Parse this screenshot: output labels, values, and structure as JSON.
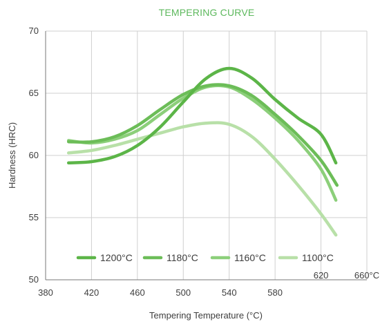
{
  "chart_data": {
    "type": "line",
    "title": "TEMPERING CURVE",
    "xlabel": "Tempering Temperature (°C)",
    "ylabel": "Hardness (HRC)",
    "xlim": [
      380,
      660
    ],
    "ylim": [
      50,
      70
    ],
    "x_ticks": [
      "380",
      "420",
      "460",
      "500",
      "540",
      "580",
      "620",
      "660°C"
    ],
    "y_ticks": [
      "50",
      "55",
      "60",
      "65",
      "70"
    ],
    "grid": true,
    "legend_position": "bottom",
    "series": [
      {
        "name": "1200°C",
        "color": "#5cb548",
        "points": [
          [
            400,
            59.4
          ],
          [
            420,
            59.5
          ],
          [
            440,
            59.9
          ],
          [
            460,
            60.8
          ],
          [
            480,
            62.3
          ],
          [
            500,
            64.3
          ],
          [
            520,
            66.2
          ],
          [
            540,
            67.0
          ],
          [
            560,
            66.2
          ],
          [
            580,
            64.5
          ],
          [
            600,
            63.0
          ],
          [
            620,
            61.7
          ],
          [
            633,
            59.4
          ]
        ]
      },
      {
        "name": "1180°C",
        "color": "#6cbd58",
        "points": [
          [
            400,
            61.1
          ],
          [
            420,
            61.1
          ],
          [
            440,
            61.5
          ],
          [
            460,
            62.4
          ],
          [
            480,
            63.7
          ],
          [
            500,
            64.9
          ],
          [
            520,
            65.6
          ],
          [
            540,
            65.6
          ],
          [
            560,
            64.8
          ],
          [
            580,
            63.3
          ],
          [
            600,
            61.6
          ],
          [
            620,
            59.6
          ],
          [
            634,
            57.6
          ]
        ]
      },
      {
        "name": "1160°C",
        "color": "#8ccf7a",
        "points": [
          [
            400,
            61.2
          ],
          [
            420,
            61.0
          ],
          [
            440,
            61.3
          ],
          [
            460,
            62.0
          ],
          [
            480,
            63.3
          ],
          [
            500,
            64.6
          ],
          [
            520,
            65.5
          ],
          [
            540,
            65.5
          ],
          [
            560,
            64.5
          ],
          [
            580,
            63.0
          ],
          [
            600,
            61.2
          ],
          [
            620,
            58.9
          ],
          [
            633,
            56.4
          ]
        ]
      },
      {
        "name": "1100°C",
        "color": "#b8e0a8",
        "points": [
          [
            400,
            60.2
          ],
          [
            420,
            60.4
          ],
          [
            440,
            60.8
          ],
          [
            460,
            61.3
          ],
          [
            480,
            61.8
          ],
          [
            500,
            62.3
          ],
          [
            520,
            62.6
          ],
          [
            540,
            62.5
          ],
          [
            560,
            61.5
          ],
          [
            580,
            59.7
          ],
          [
            600,
            57.6
          ],
          [
            620,
            55.3
          ],
          [
            633,
            53.6
          ]
        ]
      }
    ]
  }
}
